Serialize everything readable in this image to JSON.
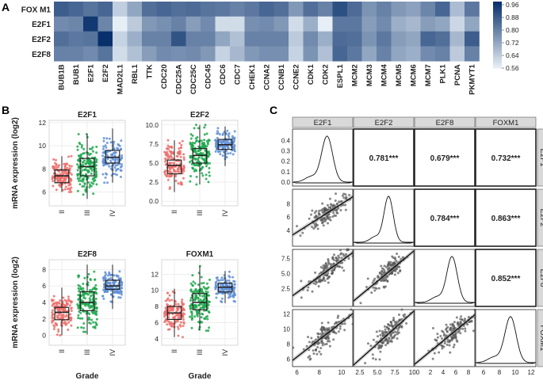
{
  "chart_data": [
    {
      "panel": "A",
      "type": "heatmap",
      "rows": [
        "FOX M1",
        "E2F1",
        "E2F2",
        "E2F8"
      ],
      "columns": [
        "BUB1B",
        "BUB1",
        "E2F1",
        "E2F2",
        "MAD2L1",
        "RBL1",
        "TTK",
        "CDC20",
        "CDC25A",
        "CDC25C",
        "CDC45",
        "CDC6",
        "CDC7",
        "CHEK1",
        "CCNA2",
        "CCNB1",
        "CCNE2",
        "CDK1",
        "CDK2",
        "ESPL1",
        "MCM2",
        "MCM3",
        "MCM4",
        "MCM5",
        "MCM6",
        "MCM7",
        "PLK1",
        "PCNA",
        "PKMYT1"
      ],
      "values": [
        [
          0.88,
          0.86,
          0.83,
          0.86,
          0.63,
          0.72,
          0.84,
          0.86,
          0.84,
          0.85,
          0.83,
          0.82,
          0.8,
          0.82,
          0.86,
          0.84,
          0.75,
          0.84,
          0.8,
          0.91,
          0.85,
          0.76,
          0.8,
          0.75,
          0.73,
          0.79,
          0.86,
          0.67,
          0.82
        ],
        [
          0.78,
          0.79,
          0.96,
          0.79,
          0.56,
          0.64,
          0.75,
          0.77,
          0.8,
          0.74,
          0.78,
          0.6,
          0.6,
          0.77,
          0.78,
          0.75,
          0.6,
          0.7,
          0.56,
          0.82,
          0.82,
          0.74,
          0.78,
          0.7,
          0.68,
          0.74,
          0.72,
          0.61,
          0.72
        ],
        [
          0.84,
          0.82,
          0.83,
          0.98,
          0.62,
          0.7,
          0.8,
          0.8,
          0.9,
          0.8,
          0.8,
          0.72,
          0.66,
          0.8,
          0.8,
          0.8,
          0.64,
          0.78,
          0.7,
          0.85,
          0.84,
          0.76,
          0.82,
          0.74,
          0.72,
          0.86,
          0.84,
          0.68,
          0.88
        ],
        [
          0.8,
          0.8,
          0.78,
          0.83,
          0.6,
          0.66,
          0.74,
          0.78,
          0.77,
          0.78,
          0.75,
          0.62,
          0.68,
          0.75,
          0.77,
          0.77,
          0.62,
          0.76,
          0.66,
          0.86,
          0.82,
          0.72,
          0.8,
          0.72,
          0.7,
          0.78,
          0.8,
          0.64,
          0.8
        ]
      ],
      "colorbar_ticks": [
        "0.96",
        "0.88",
        "0.80",
        "0.72",
        "0.64",
        "0.56"
      ],
      "value_range": [
        0.56,
        0.98
      ]
    },
    {
      "panel": "B",
      "type": "box-jitter",
      "ylabel": "mRNA expression (log2)",
      "xlabel": "Grade",
      "groups": [
        "II",
        "III",
        "IV"
      ],
      "group_colors": [
        "#ec6f6b",
        "#1ea84d",
        "#5f8fd6"
      ],
      "subplots": [
        {
          "title": "E2F1",
          "ylim": [
            4.8,
            12.2
          ],
          "yticks": [
            "6",
            "8",
            "10",
            "12"
          ],
          "yticks_v": [
            6,
            8,
            10,
            12
          ],
          "boxes": [
            [
              6.0,
              6.8,
              7.4,
              7.9,
              9.1
            ],
            [
              5.4,
              7.4,
              8.2,
              8.9,
              11.0
            ],
            [
              6.8,
              8.5,
              9.0,
              9.6,
              11.5
            ]
          ],
          "jitter_sd": [
            0.7,
            1.0,
            0.8
          ]
        },
        {
          "title": "E2F2",
          "ylim": [
            -0.6,
            10.6
          ],
          "yticks": [
            "0.0",
            "2.5",
            "5.0",
            "7.5",
            "10.0"
          ],
          "yticks_v": [
            0,
            2.5,
            5,
            7.5,
            10
          ],
          "boxes": [
            [
              1.2,
              3.6,
              4.7,
              5.4,
              8.0
            ],
            [
              2.2,
              5.0,
              6.0,
              6.9,
              10.0
            ],
            [
              4.6,
              6.8,
              7.4,
              8.1,
              9.8
            ]
          ],
          "jitter_sd": [
            1.5,
            1.5,
            0.9
          ]
        },
        {
          "title": "E2F8",
          "ylim": [
            -1.2,
            9.2
          ],
          "yticks": [
            "0",
            "2",
            "4",
            "6",
            "8"
          ],
          "yticks_v": [
            0,
            2,
            4,
            6,
            8
          ],
          "boxes": [
            [
              0.0,
              1.9,
              2.8,
              3.4,
              5.8
            ],
            [
              0.1,
              3.0,
              4.0,
              5.3,
              8.6
            ],
            [
              3.2,
              5.6,
              6.0,
              6.7,
              8.6
            ]
          ],
          "jitter_sd": [
            1.1,
            1.6,
            0.8
          ]
        },
        {
          "title": "FOXM1",
          "ylim": [
            3.2,
            13.8
          ],
          "yticks": [
            "4",
            "6",
            "8",
            "10",
            "12"
          ],
          "yticks_v": [
            4,
            6,
            8,
            10,
            12
          ],
          "boxes": [
            [
              4.2,
              6.4,
              7.2,
              8.0,
              10.2
            ],
            [
              5.0,
              7.6,
              8.5,
              9.6,
              13.0
            ],
            [
              8.4,
              9.8,
              10.4,
              10.9,
              12.4
            ]
          ],
          "jitter_sd": [
            1.0,
            1.4,
            0.7
          ]
        }
      ]
    },
    {
      "panel": "C",
      "type": "scatter-matrix",
      "variables": [
        "E2F1",
        "E2F2",
        "E2F8",
        "FOXM1"
      ],
      "correlations": [
        {
          "row": 0,
          "col": 1,
          "label": "0.781***"
        },
        {
          "row": 0,
          "col": 2,
          "label": "0.679***"
        },
        {
          "row": 0,
          "col": 3,
          "label": "0.732***"
        },
        {
          "row": 1,
          "col": 2,
          "label": "0.784***"
        },
        {
          "row": 1,
          "col": 3,
          "label": "0.863***"
        },
        {
          "row": 2,
          "col": 3,
          "label": "0.852***"
        }
      ],
      "diag_yticks": [
        "0.4",
        "0.3",
        "0.2",
        "0.1",
        "0.0"
      ],
      "diag_ylim": [
        0,
        0.44
      ],
      "row_tick_labels": [
        [],
        [
          "8",
          "6",
          "4"
        ],
        [
          "7.5",
          "5.0",
          "2.5"
        ],
        [
          "12",
          "10",
          "8",
          "6"
        ]
      ],
      "col_tick_labels": [
        [
          "6",
          "8",
          "10"
        ],
        [
          "2.5",
          "5.0",
          "7.5",
          "10"
        ],
        [
          "0",
          "2",
          "4",
          "6",
          "8"
        ],
        [
          "6",
          "8",
          "10",
          "12"
        ]
      ],
      "ranges": {
        "E2F1": [
          5.6,
          11.0
        ],
        "E2F2": [
          1.6,
          10.2
        ],
        "E2F8": [
          -0.5,
          9.0
        ],
        "FOXM1": [
          5.0,
          12.6
        ]
      },
      "means": {
        "E2F1": 8.7,
        "E2F2": 6.6,
        "E2F8": 5.4,
        "FOXM1": 9.4
      },
      "sds": {
        "E2F1": 0.9,
        "E2F2": 1.2,
        "E2F8": 1.5,
        "FOXM1": 1.3
      }
    }
  ],
  "labels": {
    "A": "A",
    "B": "B",
    "C": "C"
  }
}
